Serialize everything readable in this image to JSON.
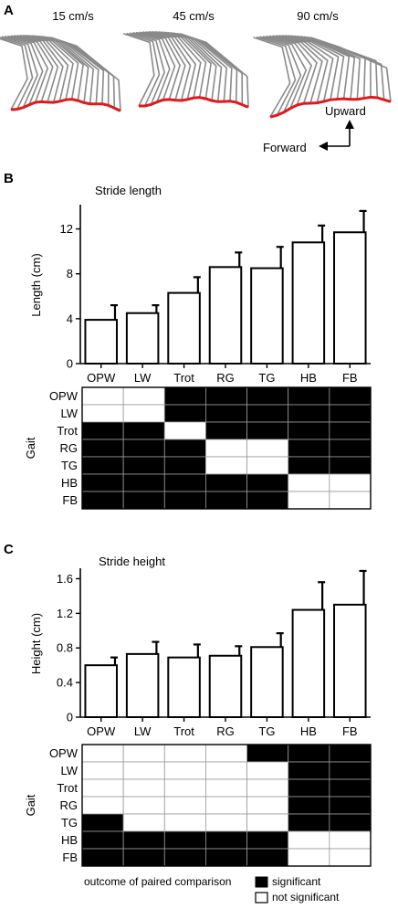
{
  "panels": {
    "a": {
      "letter": "A",
      "speeds": [
        "15 cm/s",
        "45 cm/s",
        "90 cm/s"
      ],
      "axis_up": "Upward",
      "axis_forward": "Forward",
      "trace_color": "#8a8a8a",
      "foot_color": "#e0191b"
    },
    "b": {
      "letter": "B"
    },
    "c": {
      "letter": "C"
    }
  },
  "legend": {
    "title": "outcome of paired comparison",
    "significant": "significant",
    "not_significant": "not significant"
  },
  "matrix_ylabel": "Gait",
  "chart_data": [
    {
      "type": "bar",
      "title": "Stride length",
      "xlabel": "",
      "ylabel": "Length (cm)",
      "categories": [
        "OPW",
        "LW",
        "Trot",
        "RG",
        "TG",
        "HB",
        "FB"
      ],
      "values": [
        3.9,
        4.5,
        6.3,
        8.6,
        8.5,
        10.8,
        11.7
      ],
      "errors": [
        1.3,
        0.7,
        1.4,
        1.3,
        1.9,
        1.5,
        1.9
      ],
      "ylim": [
        0,
        14
      ],
      "yticks": [
        0,
        4,
        8,
        12
      ],
      "ytick_labels": [
        "0",
        "4",
        "8",
        "12"
      ]
    },
    {
      "type": "bar",
      "title": "Stride height",
      "xlabel": "",
      "ylabel": "Height (cm)",
      "categories": [
        "OPW",
        "LW",
        "Trot",
        "RG",
        "TG",
        "HB",
        "FB"
      ],
      "values": [
        0.6,
        0.73,
        0.69,
        0.71,
        0.81,
        1.24,
        1.3
      ],
      "errors": [
        0.09,
        0.14,
        0.15,
        0.11,
        0.16,
        0.32,
        0.39
      ],
      "ylim": [
        0,
        1.7
      ],
      "yticks": [
        0,
        0.4,
        0.8,
        1.2,
        1.6
      ],
      "ytick_labels": [
        "0",
        "0.4",
        "0.8",
        "1.2",
        "1.6"
      ]
    },
    {
      "type": "table",
      "title": "",
      "rows": [
        "OPW",
        "LW",
        "Trot",
        "RG",
        "TG",
        "HB",
        "FB"
      ],
      "columns": [
        "OPW",
        "LW",
        "Trot",
        "RG",
        "TG",
        "HB",
        "FB"
      ],
      "significant": [
        [
          0,
          0,
          1,
          1,
          1,
          1,
          1
        ],
        [
          0,
          0,
          1,
          1,
          1,
          1,
          1
        ],
        [
          1,
          1,
          0,
          1,
          1,
          1,
          1
        ],
        [
          1,
          1,
          1,
          0,
          0,
          1,
          1
        ],
        [
          1,
          1,
          1,
          0,
          0,
          1,
          1
        ],
        [
          1,
          1,
          1,
          1,
          1,
          0,
          0
        ],
        [
          1,
          1,
          1,
          1,
          1,
          0,
          0
        ]
      ]
    },
    {
      "type": "table",
      "title": "",
      "rows": [
        "OPW",
        "LW",
        "Trot",
        "RG",
        "TG",
        "HB",
        "FB"
      ],
      "columns": [
        "OPW",
        "LW",
        "Trot",
        "RG",
        "TG",
        "HB",
        "FB"
      ],
      "significant": [
        [
          0,
          0,
          0,
          0,
          1,
          1,
          1
        ],
        [
          0,
          0,
          0,
          0,
          0,
          1,
          1
        ],
        [
          0,
          0,
          0,
          0,
          0,
          1,
          1
        ],
        [
          0,
          0,
          0,
          0,
          0,
          1,
          1
        ],
        [
          1,
          0,
          0,
          0,
          0,
          1,
          1
        ],
        [
          1,
          1,
          1,
          1,
          1,
          0,
          0
        ],
        [
          1,
          1,
          1,
          1,
          1,
          0,
          0
        ]
      ]
    }
  ]
}
